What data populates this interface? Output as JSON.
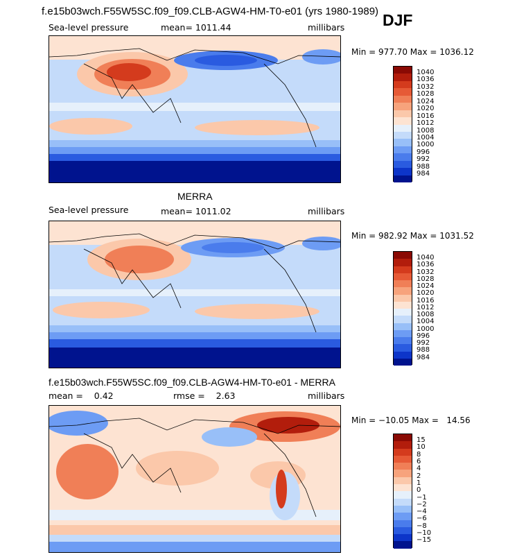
{
  "header": {
    "title": "f.e15b03wch.F55W5SC.f09_f09.CLB-AGW4-HM-T0-e01 (yrs 1980-1989)",
    "season": "DJF"
  },
  "colors": {
    "pressure_scale": [
      "#00138e",
      "#0d35c9",
      "#2a5be0",
      "#4a7cec",
      "#6d9cf4",
      "#98bff8",
      "#c4dbfa",
      "#e6f0fb",
      "#fde3d2",
      "#fbc8aa",
      "#f7a37c",
      "#f07f57",
      "#e65a36",
      "#d43b1d",
      "#b21d0c",
      "#8a0a04"
    ],
    "diff_scale": [
      "#00138e",
      "#0d35c9",
      "#2a5be0",
      "#4a7cec",
      "#6d9cf4",
      "#98bff8",
      "#c4dbfa",
      "#e6f0fb",
      "#fde3d2",
      "#fbc8aa",
      "#f7a37c",
      "#f07f57",
      "#e65a36",
      "#d43b1d",
      "#b21d0c",
      "#8a0a04"
    ]
  },
  "panels": [
    {
      "title": "",
      "variable": "Sea-level pressure",
      "stat_text": "mean=  1011.44",
      "units": "millibars",
      "minmax": "Min = 977.70 Max = 1036.12",
      "colorbar_labels": [
        "1040",
        "1036",
        "1032",
        "1028",
        "1024",
        "1020",
        "1016",
        "1012",
        "1008",
        "1004",
        "1000",
        "996",
        "992",
        "988",
        "984"
      ]
    },
    {
      "title": "MERRA",
      "variable": "Sea-level pressure",
      "stat_text": "mean=  1011.02",
      "units": "millibars",
      "minmax": "Min = 982.92 Max = 1031.52",
      "colorbar_labels": [
        "1040",
        "1036",
        "1032",
        "1028",
        "1024",
        "1020",
        "1016",
        "1012",
        "1008",
        "1004",
        "1000",
        "996",
        "992",
        "988",
        "984"
      ]
    },
    {
      "title": "f.e15b03wch.F55W5SC.f09_f09.CLB-AGW4-HM-T0-e01 - MERRA",
      "variable": "mean =    0.42",
      "stat_text": "rmse =    2.63",
      "units": "millibars",
      "minmax": "Min = −10.05 Max =   14.56",
      "colorbar_labels": [
        "15",
        "10",
        "8",
        "6",
        "4",
        "2",
        "1",
        "0",
        "−1",
        "−2",
        "−4",
        "−6",
        "−8",
        "−10",
        "−15"
      ]
    }
  ],
  "chart_data": [
    {
      "type": "heatmap",
      "title": "Sea-level pressure",
      "units": "millibars",
      "mean": 1011.44,
      "min": 977.7,
      "max": 1036.12,
      "contour_levels": [
        984,
        988,
        992,
        996,
        1000,
        1004,
        1008,
        1012,
        1016,
        1020,
        1024,
        1028,
        1032,
        1036,
        1040
      ]
    },
    {
      "type": "heatmap",
      "title": "MERRA Sea-level pressure",
      "units": "millibars",
      "mean": 1011.02,
      "min": 982.92,
      "max": 1031.52,
      "contour_levels": [
        984,
        988,
        992,
        996,
        1000,
        1004,
        1008,
        1012,
        1016,
        1020,
        1024,
        1028,
        1032,
        1036,
        1040
      ]
    },
    {
      "type": "heatmap",
      "title": "f.e15b03wch.F55W5SC.f09_f09.CLB-AGW4-HM-T0-e01 - MERRA",
      "units": "millibars",
      "mean": 0.42,
      "rmse": 2.63,
      "min": -10.05,
      "max": 14.56,
      "contour_levels": [
        -15,
        -10,
        -8,
        -6,
        -4,
        -2,
        -1,
        0,
        1,
        2,
        4,
        6,
        8,
        10,
        15
      ]
    }
  ]
}
